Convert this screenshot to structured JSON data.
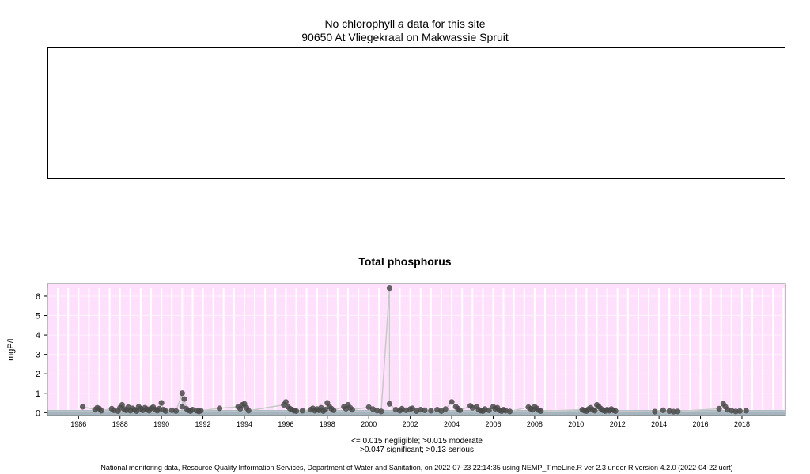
{
  "header": {
    "no_data_prefix": "No chlorophyll",
    "no_data_italic": "a",
    "no_data_suffix": "data for this site",
    "site": "90650 At Vliegekraal on Makwassie Spruit"
  },
  "chart_data": {
    "type": "scatter",
    "title": "Total phosphorus",
    "ylabel": "mgP/L",
    "xlabel": "",
    "xlim": [
      1984.5,
      2020.1
    ],
    "ylim": [
      -0.15,
      6.65
    ],
    "yticks": [
      0,
      1,
      2,
      3,
      4,
      5,
      6
    ],
    "xticks": [
      1986,
      1988,
      1990,
      1992,
      1994,
      1996,
      1998,
      2000,
      2002,
      2004,
      2006,
      2008,
      2010,
      2012,
      2014,
      2016,
      2018
    ],
    "grid": true,
    "thresholds": {
      "negligible": 0.015,
      "moderate": 0.015,
      "significant": 0.047,
      "serious": 0.13
    },
    "legend_line1": "<= 0.015 negligible; >0.015 moderate",
    "legend_line2": ">0.047 significant; >0.13 serious",
    "colors": {
      "background": "#ffe0fc",
      "grid": "#ffffff",
      "point": "#4a4a4a",
      "line": "#c8c8c8",
      "band": "#a5b4bd"
    },
    "points": [
      [
        1986.2,
        0.3
      ],
      [
        1986.8,
        0.15
      ],
      [
        1986.9,
        0.25
      ],
      [
        1987.0,
        0.2
      ],
      [
        1987.1,
        0.1
      ],
      [
        1987.6,
        0.2
      ],
      [
        1987.7,
        0.12
      ],
      [
        1987.9,
        0.08
      ],
      [
        1988.0,
        0.25
      ],
      [
        1988.1,
        0.4
      ],
      [
        1988.2,
        0.18
      ],
      [
        1988.3,
        0.12
      ],
      [
        1988.4,
        0.28
      ],
      [
        1988.5,
        0.1
      ],
      [
        1988.6,
        0.22
      ],
      [
        1988.7,
        0.15
      ],
      [
        1988.8,
        0.08
      ],
      [
        1988.9,
        0.3
      ],
      [
        1989.0,
        0.2
      ],
      [
        1989.1,
        0.12
      ],
      [
        1989.2,
        0.25
      ],
      [
        1989.3,
        0.18
      ],
      [
        1989.4,
        0.1
      ],
      [
        1989.5,
        0.22
      ],
      [
        1989.6,
        0.28
      ],
      [
        1989.7,
        0.15
      ],
      [
        1989.8,
        0.1
      ],
      [
        1989.9,
        0.2
      ],
      [
        1990.0,
        0.5
      ],
      [
        1990.1,
        0.15
      ],
      [
        1990.2,
        0.08
      ],
      [
        1990.5,
        0.12
      ],
      [
        1990.7,
        0.08
      ],
      [
        1991.0,
        1.0
      ],
      [
        1991.1,
        0.7
      ],
      [
        1991.0,
        0.3
      ],
      [
        1991.2,
        0.2
      ],
      [
        1991.3,
        0.12
      ],
      [
        1991.4,
        0.08
      ],
      [
        1991.5,
        0.15
      ],
      [
        1991.7,
        0.1
      ],
      [
        1991.8,
        0.06
      ],
      [
        1991.9,
        0.1
      ],
      [
        1992.8,
        0.22
      ],
      [
        1993.7,
        0.3
      ],
      [
        1993.8,
        0.2
      ],
      [
        1993.9,
        0.4
      ],
      [
        1994.0,
        0.45
      ],
      [
        1994.1,
        0.25
      ],
      [
        1994.2,
        0.1
      ],
      [
        1995.9,
        0.4
      ],
      [
        1996.0,
        0.55
      ],
      [
        1996.1,
        0.3
      ],
      [
        1996.2,
        0.2
      ],
      [
        1996.3,
        0.15
      ],
      [
        1996.4,
        0.1
      ],
      [
        1996.5,
        0.08
      ],
      [
        1996.8,
        0.1
      ],
      [
        1997.2,
        0.15
      ],
      [
        1997.3,
        0.22
      ],
      [
        1997.4,
        0.1
      ],
      [
        1997.5,
        0.18
      ],
      [
        1997.6,
        0.12
      ],
      [
        1997.7,
        0.25
      ],
      [
        1997.8,
        0.08
      ],
      [
        1997.9,
        0.15
      ],
      [
        1998.0,
        0.5
      ],
      [
        1998.1,
        0.3
      ],
      [
        1998.2,
        0.2
      ],
      [
        1998.3,
        0.12
      ],
      [
        1998.8,
        0.3
      ],
      [
        1998.9,
        0.2
      ],
      [
        1999.0,
        0.4
      ],
      [
        1999.1,
        0.25
      ],
      [
        1999.2,
        0.15
      ],
      [
        2000.0,
        0.28
      ],
      [
        2000.2,
        0.18
      ],
      [
        2000.4,
        0.1
      ],
      [
        2000.6,
        0.06
      ],
      [
        2001.0,
        6.42
      ],
      [
        2001.0,
        0.45
      ],
      [
        2001.3,
        0.15
      ],
      [
        2001.5,
        0.1
      ],
      [
        2001.6,
        0.2
      ],
      [
        2001.8,
        0.12
      ],
      [
        2002.0,
        0.18
      ],
      [
        2002.1,
        0.22
      ],
      [
        2002.3,
        0.08
      ],
      [
        2002.5,
        0.15
      ],
      [
        2002.7,
        0.12
      ],
      [
        2003.0,
        0.1
      ],
      [
        2003.3,
        0.15
      ],
      [
        2003.5,
        0.08
      ],
      [
        2003.7,
        0.18
      ],
      [
        2004.0,
        0.55
      ],
      [
        2004.2,
        0.3
      ],
      [
        2004.3,
        0.2
      ],
      [
        2004.4,
        0.12
      ],
      [
        2004.9,
        0.35
      ],
      [
        2005.0,
        0.25
      ],
      [
        2005.2,
        0.3
      ],
      [
        2005.3,
        0.15
      ],
      [
        2005.4,
        0.1
      ],
      [
        2005.5,
        0.08
      ],
      [
        2005.6,
        0.18
      ],
      [
        2005.8,
        0.12
      ],
      [
        2006.0,
        0.3
      ],
      [
        2006.1,
        0.2
      ],
      [
        2006.2,
        0.25
      ],
      [
        2006.3,
        0.12
      ],
      [
        2006.4,
        0.08
      ],
      [
        2006.5,
        0.15
      ],
      [
        2006.6,
        0.1
      ],
      [
        2006.8,
        0.06
      ],
      [
        2007.7,
        0.28
      ],
      [
        2007.8,
        0.2
      ],
      [
        2007.9,
        0.15
      ],
      [
        2008.0,
        0.3
      ],
      [
        2008.1,
        0.22
      ],
      [
        2008.2,
        0.12
      ],
      [
        2008.3,
        0.08
      ],
      [
        2010.3,
        0.15
      ],
      [
        2010.4,
        0.1
      ],
      [
        2010.5,
        0.08
      ],
      [
        2010.6,
        0.18
      ],
      [
        2010.7,
        0.25
      ],
      [
        2010.8,
        0.15
      ],
      [
        2010.9,
        0.1
      ],
      [
        2011.0,
        0.4
      ],
      [
        2011.1,
        0.3
      ],
      [
        2011.2,
        0.2
      ],
      [
        2011.3,
        0.12
      ],
      [
        2011.4,
        0.08
      ],
      [
        2011.5,
        0.15
      ],
      [
        2011.6,
        0.1
      ],
      [
        2011.7,
        0.18
      ],
      [
        2011.8,
        0.12
      ],
      [
        2011.9,
        0.08
      ],
      [
        2013.8,
        0.05
      ],
      [
        2014.2,
        0.12
      ],
      [
        2014.5,
        0.08
      ],
      [
        2014.7,
        0.05
      ],
      [
        2014.9,
        0.06
      ],
      [
        2016.9,
        0.2
      ],
      [
        2017.1,
        0.45
      ],
      [
        2017.2,
        0.3
      ],
      [
        2017.3,
        0.15
      ],
      [
        2017.5,
        0.1
      ],
      [
        2017.7,
        0.06
      ],
      [
        2017.9,
        0.08
      ],
      [
        2018.2,
        0.1
      ]
    ]
  },
  "footer": {
    "text": "National monitoring data, Resource Quality Information Services, Department of Water and Sanitation, on 2022-07-23 22:14:35 using NEMP_TimeLine.R ver 2.3 under R version 4.2.0 (2022-04-22 ucrt)"
  }
}
